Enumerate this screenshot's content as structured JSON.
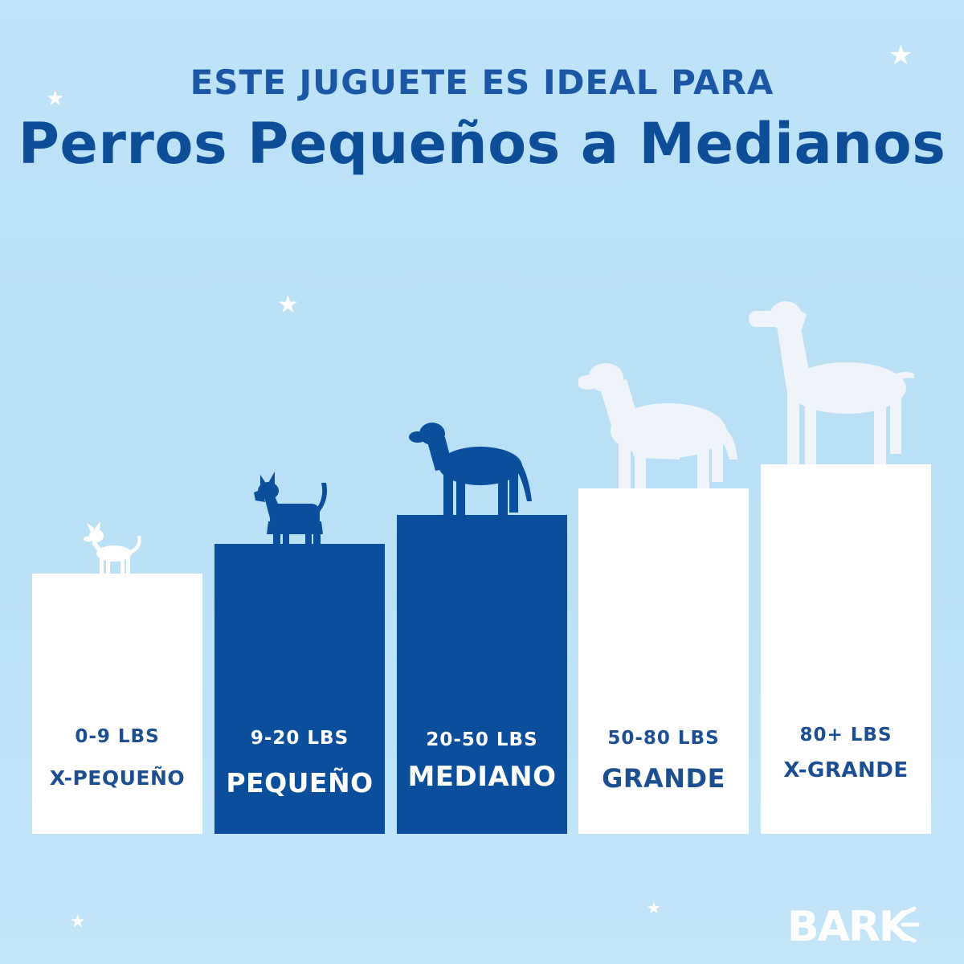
{
  "header": {
    "line1": "ESTE JUGUETE ES IDEAL PARA",
    "line2": "Perros Pequeños a Medianos"
  },
  "sizes": [
    {
      "range": "0-9 LBS",
      "label": "X-PEQUEÑO",
      "highlighted": false
    },
    {
      "range": "9-20 LBS",
      "label": "PEQUEÑO",
      "highlighted": true
    },
    {
      "range": "20-50 LBS",
      "label": "MEDIANO",
      "highlighted": true
    },
    {
      "range": "50-80 LBS",
      "label": "GRANDE",
      "highlighted": false
    },
    {
      "range": "80+ LBS",
      "label": "X-GRANDE",
      "highlighted": false
    }
  ],
  "icons": [
    "chihuahua-icon",
    "scottish-terrier-icon",
    "labrador-icon",
    "retriever-icon",
    "great-dane-icon",
    "star-icon"
  ],
  "brand": {
    "logo_text": "BARK"
  },
  "colors": {
    "background": "#bfe3f8",
    "highlight": "#0b4f9c",
    "light_bar": "#ffffff",
    "text_blue": "#1b57a5"
  }
}
